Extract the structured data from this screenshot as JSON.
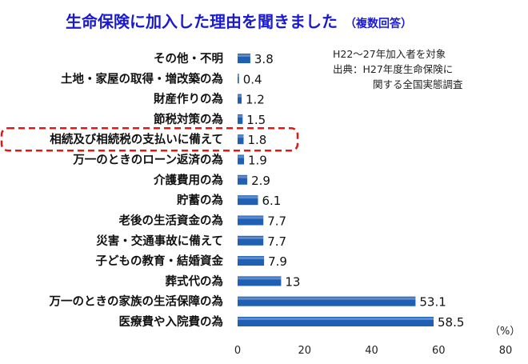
{
  "chart_data": {
    "type": "bar",
    "orientation": "horizontal",
    "title": "生命保険に加入した理由を聞きました",
    "title_suffix": "（複数回答）",
    "unit_label": "（%）",
    "categories": [
      "その他・不明",
      "土地・家屋の取得・増改築の為",
      "財産作りの為",
      "節税対策の為",
      "相続及び相続税の支払いに備えて",
      "万一のときのローン返済の為",
      "介護費用の為",
      "貯蓄の為",
      "老後の生活資金の為",
      "災害・交通事故に備えて",
      "子どもの教育・結婚資金",
      "葬式代の為",
      "万一のときの家族の生活保障の為",
      "医療費や入院費の為"
    ],
    "values": [
      3.8,
      0.4,
      1.2,
      1.5,
      1.8,
      1.9,
      2.9,
      6.1,
      7.7,
      7.7,
      7.9,
      13,
      53.1,
      58.5
    ],
    "value_labels": [
      "3.8",
      "0.4",
      "1.2",
      "1.5",
      "1.8",
      "1.9",
      "2.9",
      "6.1",
      "7.7",
      "7.7",
      "7.9",
      "13",
      "53.1",
      "58.5"
    ],
    "xlim": [
      0,
      80
    ],
    "xticks": [
      "0",
      "20",
      "40",
      "60",
      "80"
    ],
    "highlighted_category": "相続及び相続税の支払いに備えて",
    "grid": false,
    "notes": [
      "H22〜27年加入者を対象",
      "出典：H27年度生命保険に",
      "関する全国実態調査"
    ],
    "colors": {
      "title": "#1a1ad0",
      "bar": "#1f5fb4",
      "highlight_border": "#e01818"
    }
  }
}
